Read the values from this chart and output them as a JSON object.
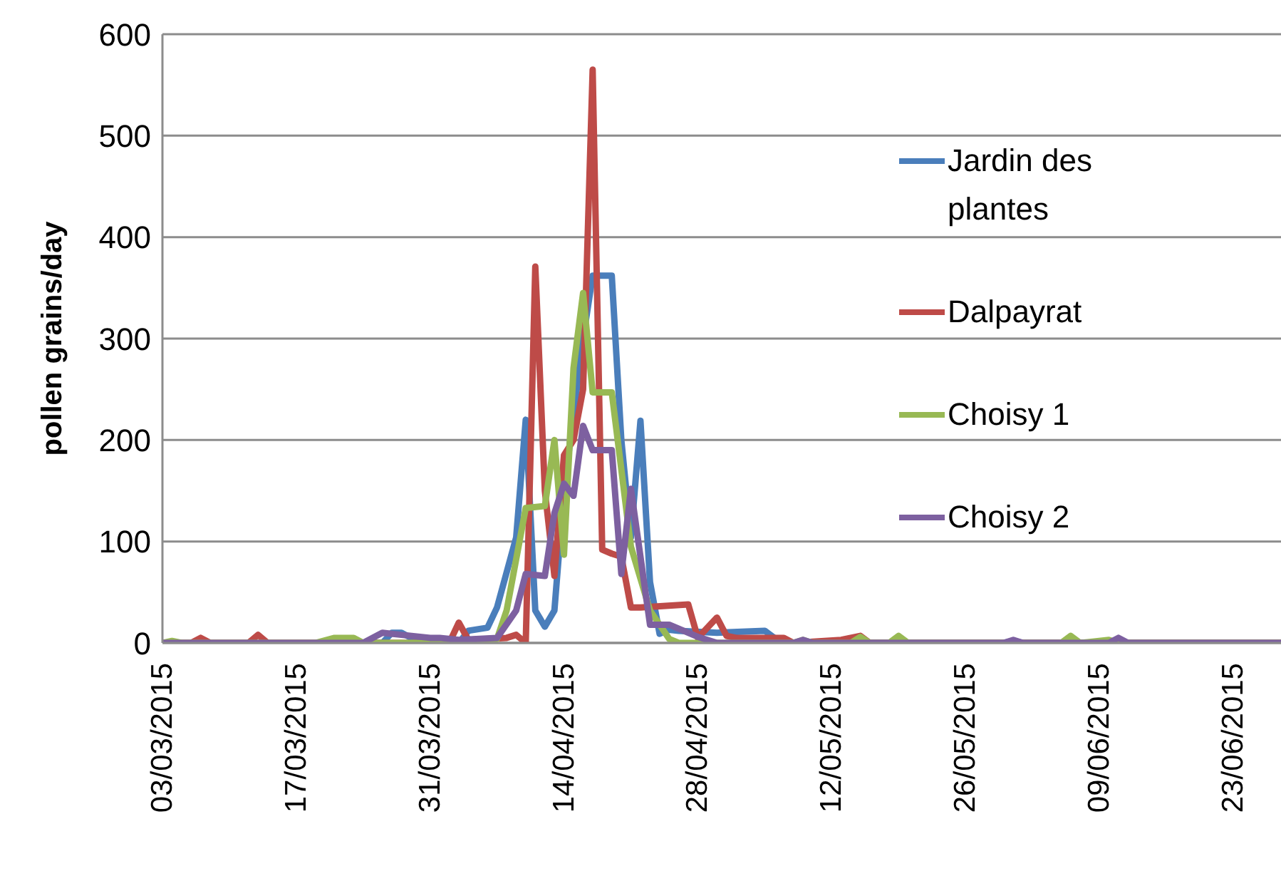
{
  "chart_data": {
    "type": "line",
    "ylabel": "pollen grains/day",
    "xlim": [
      "2015-03-03",
      "2015-06-28"
    ],
    "ylim": [
      0,
      600
    ],
    "yticks": [
      0,
      100,
      200,
      300,
      400,
      500,
      600
    ],
    "xticks": [
      {
        "value": "2015-03-03",
        "label": "03/03/2015"
      },
      {
        "value": "2015-03-17",
        "label": "17/03/2015"
      },
      {
        "value": "2015-03-31",
        "label": "31/03/2015"
      },
      {
        "value": "2015-04-14",
        "label": "14/04/2015"
      },
      {
        "value": "2015-04-28",
        "label": "28/04/2015"
      },
      {
        "value": "2015-05-12",
        "label": "12/05/2015"
      },
      {
        "value": "2015-05-26",
        "label": "26/05/2015"
      },
      {
        "value": "2015-06-09",
        "label": "09/06/2015"
      },
      {
        "value": "2015-06-23",
        "label": "23/06/2015"
      }
    ],
    "grid": "y",
    "legend": "right",
    "marker": "none",
    "line_style": "solid",
    "series": [
      {
        "name": "Jardin des plantes",
        "color": "#4a7ebb",
        "x": [
          "2015-03-24",
          "2015-03-26",
          "2015-03-27",
          "2015-03-28",
          "2015-03-29",
          "2015-03-31",
          "2015-04-01",
          "2015-04-03",
          "2015-04-04",
          "2015-04-06",
          "2015-04-07",
          "2015-04-09",
          "2015-04-10",
          "2015-04-11",
          "2015-04-12",
          "2015-04-13",
          "2015-04-14",
          "2015-04-16",
          "2015-04-17",
          "2015-04-19",
          "2015-04-20",
          "2015-04-21",
          "2015-04-22",
          "2015-04-23",
          "2015-04-24",
          "2015-04-25",
          "2015-04-26",
          "2015-04-30",
          "2015-05-05",
          "2015-05-06",
          "2015-05-08",
          "2015-05-30",
          "2015-05-31",
          "2015-06-01",
          "2015-06-28"
        ],
        "values": [
          0,
          0,
          10,
          10,
          5,
          3,
          0,
          0,
          12,
          15,
          35,
          104,
          220,
          32,
          16,
          32,
          150,
          300,
          362,
          362,
          200,
          104,
          219,
          60,
          9,
          13,
          12,
          10,
          12,
          5,
          0,
          0,
          2,
          0,
          0
        ]
      },
      {
        "name": "Dalpayrat",
        "color": "#be4b48",
        "x": [
          "2015-03-03",
          "2015-03-06",
          "2015-03-07",
          "2015-03-08",
          "2015-03-12",
          "2015-03-13",
          "2015-03-14",
          "2015-04-02",
          "2015-04-03",
          "2015-04-04",
          "2015-04-08",
          "2015-04-09",
          "2015-04-10",
          "2015-04-11",
          "2015-04-12",
          "2015-04-13",
          "2015-04-14",
          "2015-04-15",
          "2015-04-16",
          "2015-04-17",
          "2015-04-18",
          "2015-04-19",
          "2015-04-20",
          "2015-04-21",
          "2015-04-22",
          "2015-04-27",
          "2015-04-28",
          "2015-04-30",
          "2015-05-01",
          "2015-05-02",
          "2015-05-07",
          "2015-05-08",
          "2015-05-13",
          "2015-05-15",
          "2015-05-16",
          "2015-06-28"
        ],
        "values": [
          0,
          0,
          5,
          0,
          0,
          8,
          0,
          0,
          20,
          3,
          5,
          8,
          0,
          371,
          150,
          66,
          185,
          200,
          250,
          565,
          92,
          88,
          85,
          35,
          35,
          38,
          5,
          25,
          7,
          5,
          5,
          0,
          3,
          7,
          0,
          0
        ]
      },
      {
        "name": "Choisy 1",
        "color": "#98b954",
        "x": [
          "2015-03-03",
          "2015-03-04",
          "2015-03-05",
          "2015-03-19",
          "2015-03-21",
          "2015-03-23",
          "2015-03-24",
          "2015-04-06",
          "2015-04-07",
          "2015-04-08",
          "2015-04-10",
          "2015-04-12",
          "2015-04-13",
          "2015-04-14",
          "2015-04-15",
          "2015-04-16",
          "2015-04-17",
          "2015-04-19",
          "2015-04-21",
          "2015-04-23",
          "2015-04-25",
          "2015-04-26",
          "2015-05-08",
          "2015-05-09",
          "2015-05-10",
          "2015-05-14",
          "2015-05-15",
          "2015-05-16",
          "2015-05-18",
          "2015-05-19",
          "2015-05-20",
          "2015-06-05",
          "2015-06-06",
          "2015-06-07",
          "2015-06-10",
          "2015-06-11",
          "2015-06-28"
        ],
        "values": [
          0,
          2,
          0,
          0,
          5,
          5,
          0,
          0,
          4,
          32,
          133,
          135,
          200,
          87,
          271,
          345,
          247,
          247,
          95,
          32,
          4,
          0,
          0,
          3,
          0,
          0,
          6,
          0,
          0,
          7,
          0,
          0,
          7,
          0,
          3,
          0,
          0
        ]
      },
      {
        "name": "Choisy 2",
        "color": "#7d60a0",
        "x": [
          "2015-03-03",
          "2015-03-24",
          "2015-03-26",
          "2015-03-28",
          "2015-03-31",
          "2015-04-01",
          "2015-04-03",
          "2015-04-07",
          "2015-04-09",
          "2015-04-10",
          "2015-04-12",
          "2015-04-13",
          "2015-04-14",
          "2015-04-15",
          "2015-04-16",
          "2015-04-17",
          "2015-04-19",
          "2015-04-20",
          "2015-04-21",
          "2015-04-23",
          "2015-04-25",
          "2015-04-28",
          "2015-04-30",
          "2015-05-08",
          "2015-05-09",
          "2015-05-10",
          "2015-05-30",
          "2015-05-31",
          "2015-06-01",
          "2015-06-10",
          "2015-06-11",
          "2015-06-12",
          "2015-06-28"
        ],
        "values": [
          0,
          0,
          10,
          8,
          5,
          5,
          3,
          5,
          32,
          68,
          66,
          128,
          157,
          145,
          214,
          190,
          190,
          68,
          152,
          18,
          18,
          6,
          0,
          0,
          3,
          0,
          0,
          3,
          0,
          0,
          5,
          0,
          0
        ]
      }
    ]
  }
}
